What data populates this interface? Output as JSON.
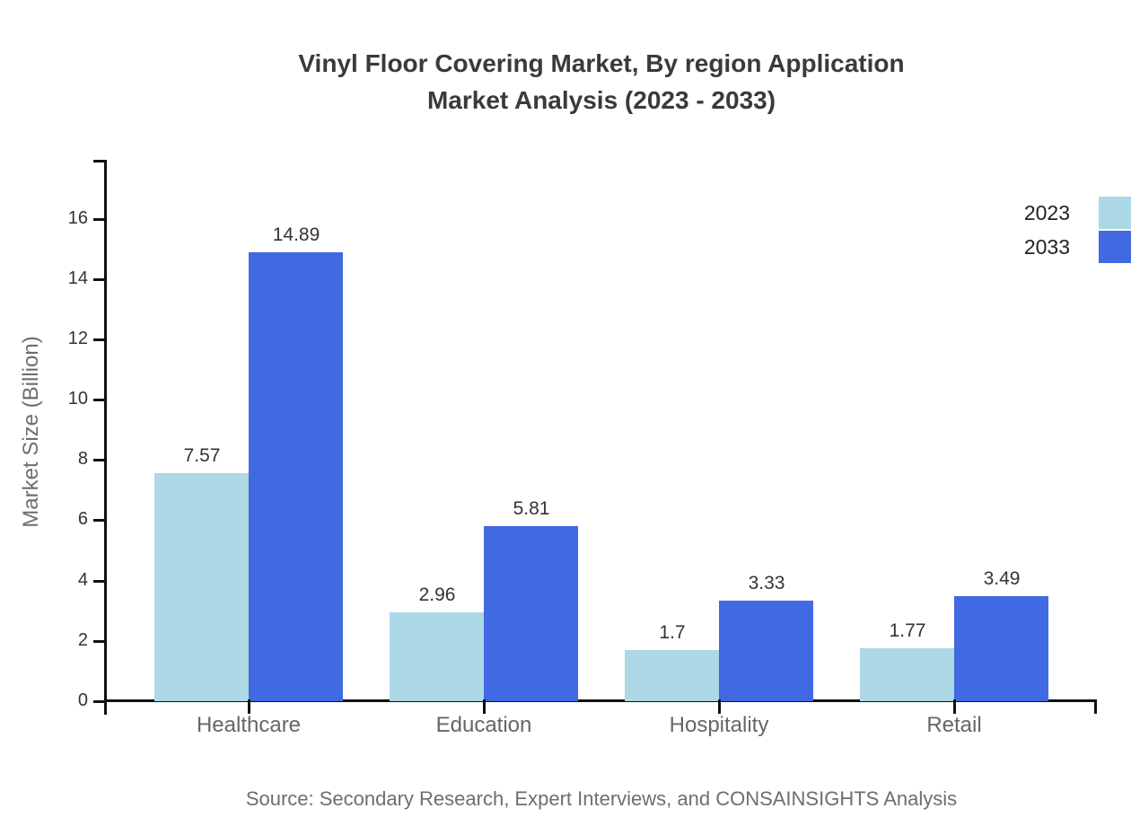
{
  "title": {
    "line1": "Vinyl Floor Covering Market, By region Application",
    "line2": "Market Analysis (2023 - 2033)"
  },
  "source": {
    "text": "Source: Secondary Research, Expert Interviews, and CONSAINSIGHTS Analysis"
  },
  "chart_data": {
    "type": "bar",
    "title": "Vinyl Floor Covering Market, By region Application Market Analysis (2023 - 2033)",
    "categories": [
      "Healthcare",
      "Education",
      "Hospitality",
      "Retail"
    ],
    "series": [
      {
        "name": "2023",
        "color": "#ADD8E6",
        "values": [
          7.57,
          2.96,
          1.7,
          1.77
        ]
      },
      {
        "name": "2033",
        "color": "#4169E1",
        "values": [
          14.89,
          5.81,
          3.33,
          3.49
        ]
      }
    ],
    "xlabel": "",
    "ylabel": "Market Size (Billion)",
    "ylim": [
      0,
      17.95
    ],
    "yticks": [
      0,
      2,
      4,
      6,
      8,
      10,
      12,
      14,
      16
    ],
    "grid": false,
    "bar_value_labels": true,
    "legend": {
      "position": "top-right",
      "entries": [
        {
          "label": "2023",
          "color": "#ADD8E6"
        },
        {
          "label": "2033",
          "color": "#4169E1"
        }
      ]
    }
  },
  "colors": {
    "background": "#ffffff",
    "axis": "#111111",
    "title_text": "#3a3a3a",
    "tick_label": "#333333",
    "category_label": "#666666",
    "value_label": "#333333",
    "axis_title": "#6e6e6e",
    "legend_label": "#222222",
    "source_text": "#6e6e6e"
  }
}
